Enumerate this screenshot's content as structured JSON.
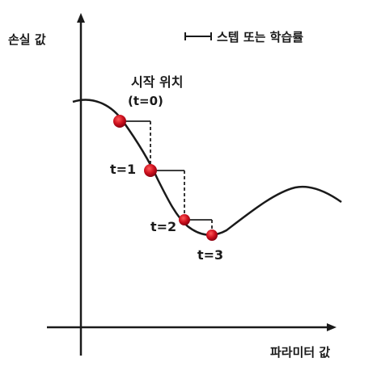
{
  "axes": {
    "y_label": "손실 값",
    "x_label": "파라미터 값"
  },
  "legend": {
    "label": "스텝 또는 학습률"
  },
  "annotations": {
    "start_title": "시작 위치",
    "start_sub": "(t=0)",
    "step1": "t=1",
    "step2": "t=2",
    "step3": "t=3"
  },
  "colors": {
    "curve": "#1a1a1a",
    "point": "#cc1122",
    "step_lines": "#222222"
  }
}
